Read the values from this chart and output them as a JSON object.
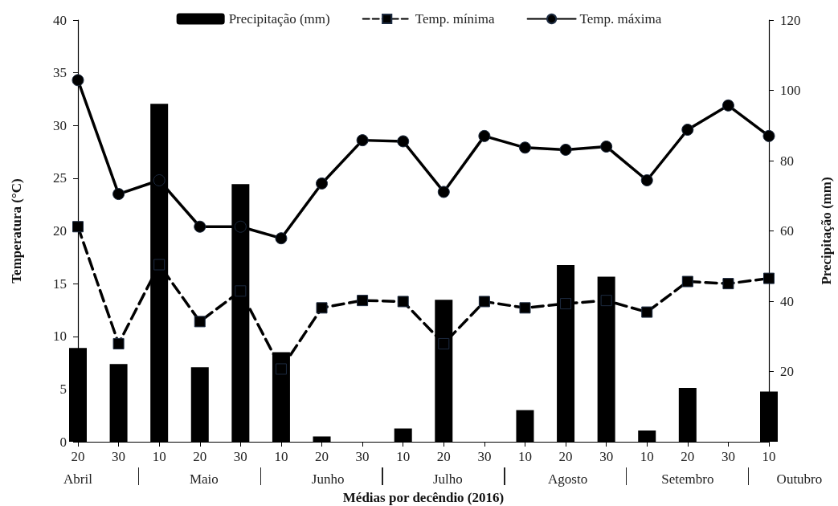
{
  "chart_data": {
    "type": "line",
    "xlabel": "Médias por decêndio (2016)",
    "ylabel": "Temperatura (°C)",
    "y2label": "Precipitação (mm)",
    "categories": [
      "20",
      "30",
      "10",
      "20",
      "30",
      "10",
      "20",
      "30",
      "10",
      "20",
      "30",
      "10",
      "20",
      "30",
      "10",
      "20",
      "30",
      "10"
    ],
    "annotations": [
      "Abril",
      "Maio",
      "Junho",
      "Julho",
      "Agosto",
      "Setembro",
      "Outubro"
    ],
    "ylim": [
      0,
      40
    ],
    "yticks": [
      0,
      5,
      10,
      15,
      20,
      25,
      30,
      35,
      40
    ],
    "y2lim": [
      0,
      120
    ],
    "y2ticks": [
      20,
      40,
      60,
      80,
      100,
      120
    ],
    "legend": "top",
    "series": [
      {
        "name": "Precipitação (mm)",
        "type": "bar",
        "axis": "y2",
        "color": "#000000",
        "values": [
          26.7,
          22.1,
          96.2,
          21.2,
          73.3,
          25.5,
          1.5,
          0,
          3.8,
          40.4,
          0,
          9.0,
          50.3,
          47.0,
          3.2,
          15.3,
          0,
          14.3
        ]
      },
      {
        "name": "Temp. mínima",
        "color": "#000000",
        "marker": "square",
        "line_style": "dashed",
        "values": [
          20.4,
          9.3,
          16.8,
          11.4,
          14.3,
          6.9,
          12.7,
          13.4,
          13.3,
          9.3,
          13.3,
          12.7,
          13.1,
          13.4,
          12.3,
          15.2,
          15.0,
          15.5
        ]
      },
      {
        "name": "Temp. máxima",
        "color": "#000000",
        "marker": "circle",
        "line_style": "solid",
        "values": [
          34.3,
          23.5,
          24.8,
          20.4,
          20.4,
          19.3,
          24.5,
          28.6,
          28.5,
          23.7,
          29.0,
          27.9,
          27.7,
          28.0,
          24.8,
          29.6,
          31.9,
          29.0
        ]
      }
    ]
  }
}
